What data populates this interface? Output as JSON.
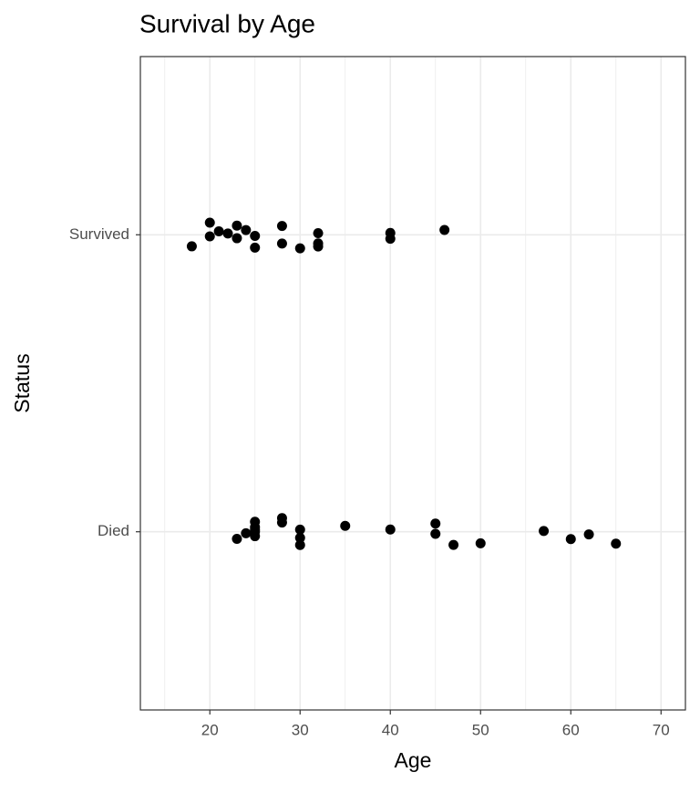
{
  "chart_data": {
    "type": "scatter",
    "title": "Survival by Age",
    "x_label": "Age",
    "y_label": "Status",
    "categories": [
      "Died",
      "Survived"
    ],
    "x": [
      18,
      20,
      20,
      21,
      22,
      23,
      23,
      24,
      25,
      25,
      28,
      28,
      30,
      32,
      32,
      32,
      40,
      40,
      46,
      23,
      24,
      25,
      25,
      25,
      25,
      25,
      28,
      28,
      30,
      30,
      30,
      35,
      40,
      45,
      45,
      47,
      50,
      57,
      60,
      62,
      65
    ],
    "y": [
      "Survived",
      "Survived",
      "Survived",
      "Survived",
      "Survived",
      "Survived",
      "Survived",
      "Survived",
      "Survived",
      "Survived",
      "Survived",
      "Survived",
      "Survived",
      "Survived",
      "Survived",
      "Survived",
      "Survived",
      "Survived",
      "Survived",
      "Died",
      "Died",
      "Died",
      "Died",
      "Died",
      "Died",
      "Died",
      "Died",
      "Died",
      "Died",
      "Died",
      "Died",
      "Died",
      "Died",
      "Died",
      "Died",
      "Died",
      "Died",
      "Died",
      "Died",
      "Died",
      "Died"
    ],
    "color": "#000000",
    "xlim": [
      12.3,
      72.7
    ],
    "xticks": [
      20,
      30,
      40,
      50,
      60,
      70
    ],
    "xminor": [
      15,
      25,
      35,
      45,
      55,
      65
    ],
    "grid": true
  }
}
